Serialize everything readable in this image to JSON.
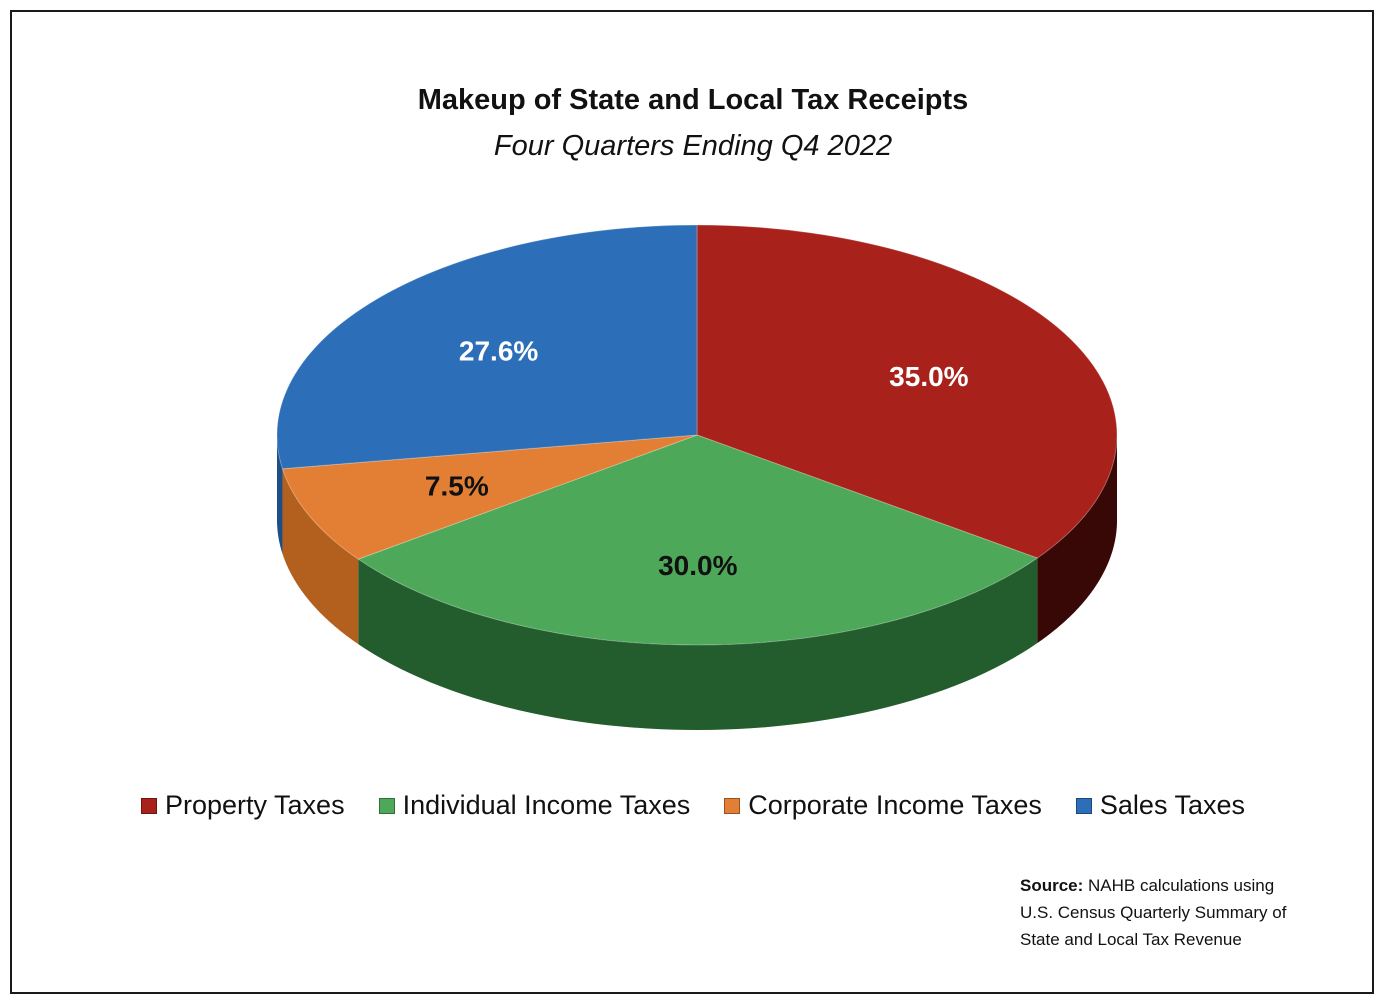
{
  "chart_data": {
    "type": "pie",
    "title": "Makeup of State and Local Tax Receipts",
    "subtitle": "Four Quarters Ending Q4 2022",
    "slices": [
      {
        "name": "Property Taxes",
        "value": 35.0,
        "label": "35.0%",
        "color": "#a8211a",
        "side_color": "#5c0e0a",
        "label_color": "#ffffff"
      },
      {
        "name": "Individual Income Taxes",
        "value": 30.0,
        "label": "30.0%",
        "color": "#4ea85a",
        "side_color": "#2a6e35",
        "label_color": "#111111"
      },
      {
        "name": "Corporate Income Taxes",
        "value": 7.5,
        "label": "7.5%",
        "color": "#e27f34",
        "side_color": "#b3601f",
        "label_color": "#111111"
      },
      {
        "name": "Sales Taxes",
        "value": 27.6,
        "label": "27.6%",
        "color": "#2c6fb8",
        "side_color": "#1d4f87",
        "label_color": "#ffffff"
      }
    ],
    "legend": {
      "position": "bottom",
      "items": [
        "Property Taxes",
        "Individual Income Taxes",
        "Corporate Income Taxes",
        "Sales Taxes"
      ]
    }
  },
  "source": {
    "label": "Source:",
    "line1": " NAHB calculations using",
    "line2": "U.S. Census Quarterly Summary of",
    "line3": "State and Local Tax Revenue"
  }
}
